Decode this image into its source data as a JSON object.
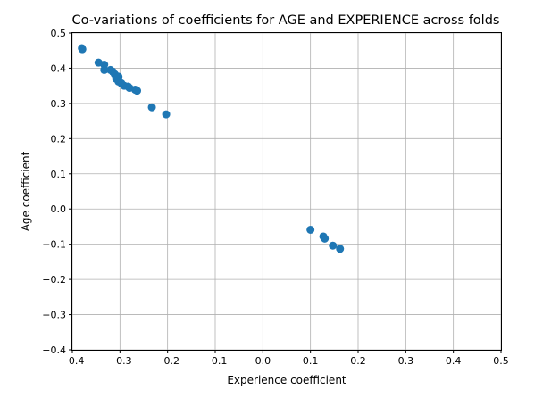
{
  "chart_data": {
    "type": "scatter",
    "title": "Co-variations of coefficients for AGE and EXPERIENCE across folds",
    "xlabel": "Experience coefficient",
    "ylabel": "Age coefficient",
    "xlim": [
      -0.4,
      0.5
    ],
    "ylim": [
      -0.4,
      0.5
    ],
    "xticks": [
      "−0.4",
      "−0.3",
      "−0.2",
      "−0.1",
      "0.0",
      "0.1",
      "0.2",
      "0.3",
      "0.4",
      "0.5"
    ],
    "yticks": [
      "0.5",
      "0.4",
      "0.3",
      "0.2",
      "0.1",
      "0.0",
      "−0.1",
      "−0.2",
      "−0.3",
      "−0.4"
    ],
    "grid": true,
    "marker_color": "#1f77b4",
    "series": [
      {
        "points": [
          {
            "x": -0.38,
            "y": 0.457
          },
          {
            "x": -0.379,
            "y": 0.454
          },
          {
            "x": -0.345,
            "y": 0.416
          },
          {
            "x": -0.333,
            "y": 0.41
          },
          {
            "x": -0.333,
            "y": 0.395
          },
          {
            "x": -0.32,
            "y": 0.395
          },
          {
            "x": -0.315,
            "y": 0.39
          },
          {
            "x": -0.311,
            "y": 0.383
          },
          {
            "x": -0.303,
            "y": 0.376
          },
          {
            "x": -0.308,
            "y": 0.37
          },
          {
            "x": -0.303,
            "y": 0.362
          },
          {
            "x": -0.297,
            "y": 0.357
          },
          {
            "x": -0.291,
            "y": 0.35
          },
          {
            "x": -0.283,
            "y": 0.348
          },
          {
            "x": -0.28,
            "y": 0.344
          },
          {
            "x": -0.268,
            "y": 0.339
          },
          {
            "x": -0.264,
            "y": 0.336
          },
          {
            "x": -0.233,
            "y": 0.289
          },
          {
            "x": -0.203,
            "y": 0.269
          },
          {
            "x": 0.1,
            "y": -0.059
          },
          {
            "x": 0.127,
            "y": -0.078
          },
          {
            "x": 0.13,
            "y": -0.084
          },
          {
            "x": 0.147,
            "y": -0.104
          },
          {
            "x": 0.162,
            "y": -0.113
          }
        ]
      }
    ]
  }
}
